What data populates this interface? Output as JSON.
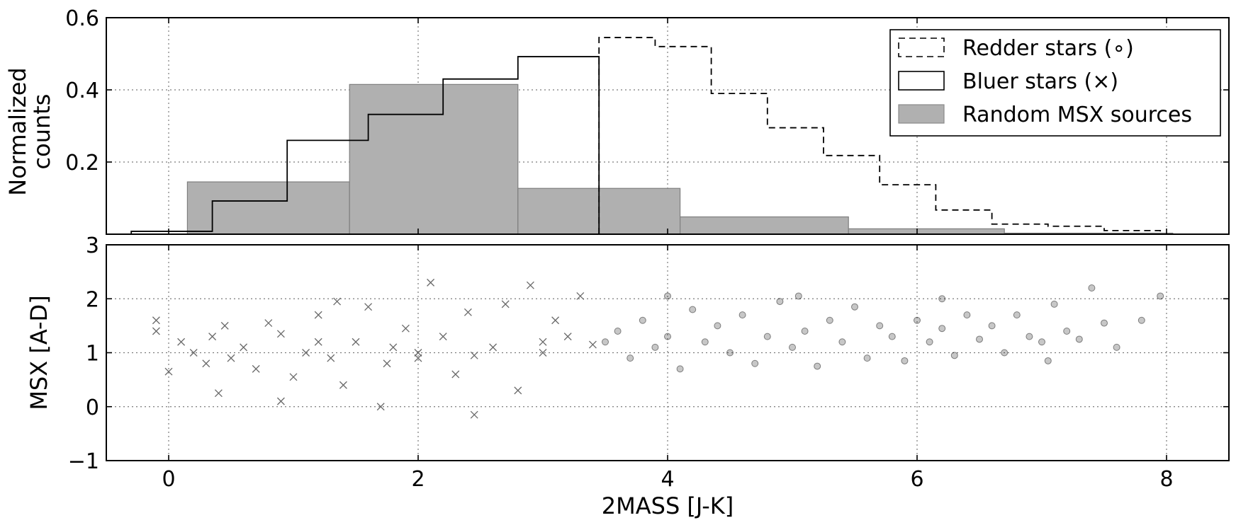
{
  "chart_data": [
    {
      "panel": "top",
      "type": "bar",
      "ylabel": [
        "Normalized",
        "counts"
      ],
      "xlim": [
        -0.5,
        8.5
      ],
      "ylim": [
        0,
        0.6
      ],
      "yticks": [
        0.2,
        0.4,
        0.6
      ],
      "ytick_labels": [
        "0.2",
        "0.4",
        "0.6"
      ],
      "xticks": [
        0,
        2,
        4,
        6,
        8
      ],
      "grid": true,
      "legend_position": "top-right",
      "series": [
        {
          "name": "Redder stars (∘)",
          "style": "step-dashed",
          "color": "#000000",
          "edges": [
            3.45,
            3.9,
            4.35,
            4.8,
            5.25,
            5.7,
            6.15,
            6.6,
            7.05,
            7.5,
            7.95
          ],
          "values": [
            0.545,
            0.52,
            0.39,
            0.295,
            0.218,
            0.137,
            0.067,
            0.028,
            0.022,
            0.01
          ]
        },
        {
          "name": "Bluer stars (×)",
          "style": "step-solid",
          "color": "#000000",
          "edges": [
            -0.3,
            0.35,
            0.95,
            1.6,
            2.2,
            2.8,
            3.45
          ],
          "values": [
            0.008,
            0.092,
            0.26,
            0.332,
            0.43,
            0.492
          ]
        },
        {
          "name": "Random MSX sources",
          "style": "filled-bars",
          "color": "#b0b0b0",
          "edges": [
            0.15,
            1.45,
            2.8,
            4.1,
            5.45,
            6.7,
            8.05
          ],
          "values": [
            0.145,
            0.415,
            0.127,
            0.048,
            0.015,
            0.003
          ]
        }
      ]
    },
    {
      "panel": "bottom",
      "type": "scatter",
      "xlabel": "2MASS [J-K]",
      "ylabel": "MSX [A-D]",
      "xlim": [
        -0.5,
        8.5
      ],
      "ylim": [
        -1,
        3
      ],
      "xticks": [
        0,
        2,
        4,
        6,
        8
      ],
      "xtick_labels": [
        "0",
        "2",
        "4",
        "6",
        "8"
      ],
      "yticks": [
        -1,
        0,
        1,
        2,
        3
      ],
      "ytick_labels": [
        "−1",
        "0",
        "1",
        "2",
        "3"
      ],
      "grid": true,
      "series": [
        {
          "name": "Bluer stars (×)",
          "marker": "x",
          "points": [
            [
              -0.1,
              1.6
            ],
            [
              -0.1,
              1.4
            ],
            [
              0.0,
              0.65
            ],
            [
              0.1,
              1.2
            ],
            [
              0.2,
              1.0
            ],
            [
              0.3,
              0.8
            ],
            [
              0.35,
              1.3
            ],
            [
              0.4,
              0.25
            ],
            [
              0.45,
              1.5
            ],
            [
              0.5,
              0.9
            ],
            [
              0.6,
              1.1
            ],
            [
              0.7,
              0.7
            ],
            [
              0.8,
              1.55
            ],
            [
              0.9,
              1.35
            ],
            [
              1.0,
              0.55
            ],
            [
              1.1,
              1.0
            ],
            [
              1.2,
              1.7
            ],
            [
              1.3,
              0.9
            ],
            [
              1.35,
              1.95
            ],
            [
              1.4,
              0.4
            ],
            [
              1.5,
              1.2
            ],
            [
              1.6,
              1.85
            ],
            [
              1.7,
              0.0
            ],
            [
              1.75,
              0.8
            ],
            [
              1.8,
              1.1
            ],
            [
              1.9,
              1.45
            ],
            [
              2.0,
              0.9
            ],
            [
              2.1,
              2.3
            ],
            [
              2.2,
              1.3
            ],
            [
              2.3,
              0.6
            ],
            [
              2.4,
              1.75
            ],
            [
              2.45,
              0.95
            ],
            [
              2.6,
              1.1
            ],
            [
              2.7,
              1.9
            ],
            [
              2.8,
              0.3
            ],
            [
              2.9,
              2.25
            ],
            [
              3.0,
              1.0
            ],
            [
              3.1,
              1.6
            ],
            [
              3.2,
              1.3
            ],
            [
              3.3,
              2.05
            ],
            [
              3.4,
              1.15
            ],
            [
              2.45,
              -0.15
            ],
            [
              0.9,
              0.1
            ],
            [
              1.2,
              1.2
            ],
            [
              2.0,
              1.0
            ],
            [
              3.0,
              1.2
            ]
          ]
        },
        {
          "name": "Redder stars (∘)",
          "marker": "o",
          "points": [
            [
              3.5,
              1.2
            ],
            [
              3.6,
              1.4
            ],
            [
              3.7,
              0.9
            ],
            [
              3.8,
              1.6
            ],
            [
              3.9,
              1.1
            ],
            [
              4.0,
              1.3
            ],
            [
              4.1,
              0.7
            ],
            [
              4.2,
              1.8
            ],
            [
              4.3,
              1.2
            ],
            [
              4.4,
              1.5
            ],
            [
              4.5,
              1.0
            ],
            [
              4.6,
              1.7
            ],
            [
              4.7,
              0.8
            ],
            [
              4.8,
              1.3
            ],
            [
              4.9,
              1.95
            ],
            [
              5.0,
              1.1
            ],
            [
              5.1,
              1.4
            ],
            [
              5.2,
              0.75
            ],
            [
              5.3,
              1.6
            ],
            [
              5.4,
              1.2
            ],
            [
              5.5,
              1.85
            ],
            [
              5.6,
              0.9
            ],
            [
              5.7,
              1.5
            ],
            [
              5.8,
              1.3
            ],
            [
              5.9,
              0.85
            ],
            [
              6.0,
              1.6
            ],
            [
              6.1,
              1.2
            ],
            [
              6.2,
              1.45
            ],
            [
              6.3,
              0.95
            ],
            [
              6.4,
              1.7
            ],
            [
              6.5,
              1.25
            ],
            [
              6.6,
              1.5
            ],
            [
              6.7,
              1.0
            ],
            [
              6.8,
              1.7
            ],
            [
              6.9,
              1.3
            ],
            [
              7.0,
              1.2
            ],
            [
              7.1,
              1.9
            ],
            [
              7.2,
              1.4
            ],
            [
              7.3,
              1.25
            ],
            [
              7.4,
              2.2
            ],
            [
              7.5,
              1.55
            ],
            [
              7.6,
              1.1
            ],
            [
              7.8,
              1.6
            ],
            [
              7.95,
              2.05
            ],
            [
              6.2,
              2.0
            ],
            [
              7.05,
              0.85
            ],
            [
              4.0,
              2.05
            ],
            [
              5.05,
              2.05
            ]
          ]
        }
      ]
    }
  ]
}
